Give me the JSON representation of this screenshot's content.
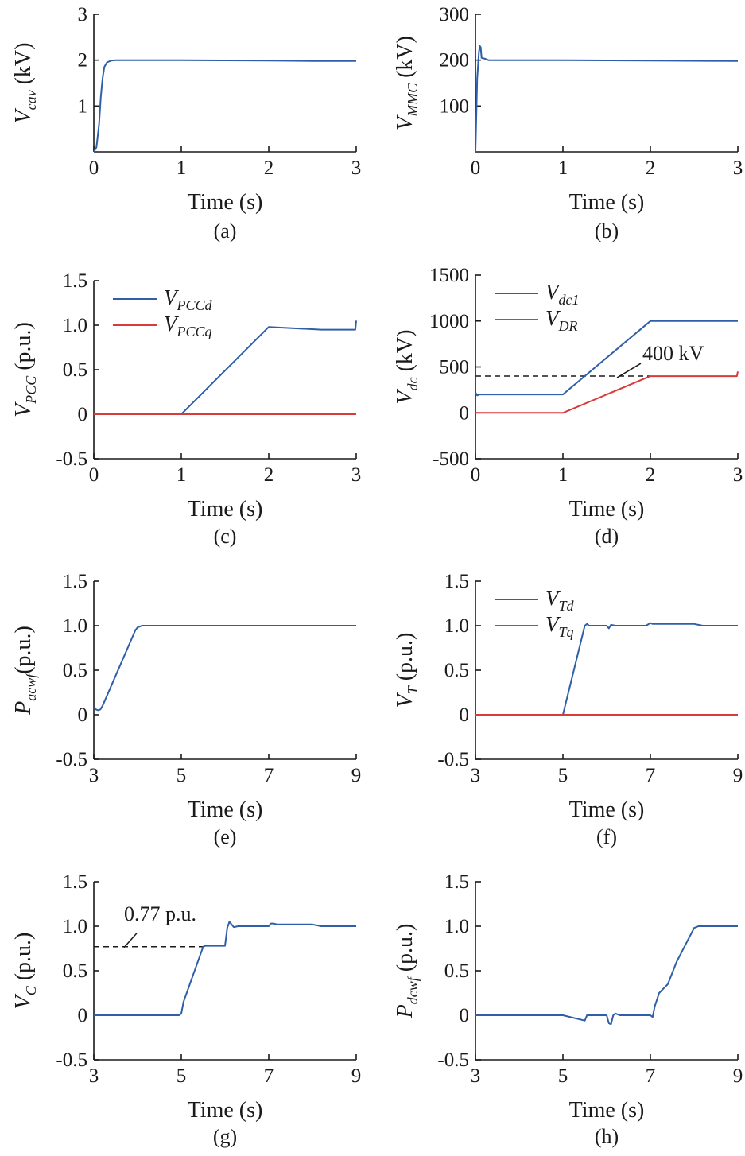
{
  "chart_data": [
    {
      "panel": "(a)",
      "type": "line",
      "xlabel": "Time (s)",
      "ylabel": {
        "main": "V",
        "sub": "cav",
        "unit": " (kV)"
      },
      "xlim": [
        0,
        3
      ],
      "ylim": [
        0,
        3
      ],
      "xticks": [
        0,
        1,
        2,
        3
      ],
      "yticks": [
        1,
        2,
        3
      ],
      "xticklabels": [
        "0",
        "1",
        "2",
        "3"
      ],
      "yticklabels": [
        "1",
        "2",
        "3"
      ],
      "series": [
        {
          "color": "#2e5fa8",
          "x": [
            0,
            0.03,
            0.06,
            0.08,
            0.1,
            0.12,
            0.15,
            0.2,
            0.25,
            0.3,
            1.0,
            2.0,
            2.5,
            3.0
          ],
          "y": [
            0,
            0.1,
            0.6,
            1.2,
            1.6,
            1.85,
            1.95,
            1.99,
            2.0,
            2.0,
            2.0,
            1.99,
            1.98,
            1.98
          ]
        }
      ]
    },
    {
      "panel": "(b)",
      "type": "line",
      "xlabel": "Time (s)",
      "ylabel": {
        "main": "V",
        "sub": "MMC",
        "unit": " (kV)"
      },
      "xlim": [
        0,
        3
      ],
      "ylim": [
        0,
        300
      ],
      "xticks": [
        0,
        1,
        2,
        3
      ],
      "yticks": [
        100,
        200,
        300
      ],
      "xticklabels": [
        "0",
        "1",
        "2",
        "3"
      ],
      "yticklabels": [
        "100",
        "200",
        "300"
      ],
      "series": [
        {
          "color": "#2e5fa8",
          "x": [
            0,
            0.02,
            0.04,
            0.05,
            0.06,
            0.07,
            0.09,
            0.11,
            0.15,
            0.2,
            1.0,
            2.0,
            3.0
          ],
          "y": [
            0,
            160,
            218,
            231,
            228,
            205,
            204,
            203,
            200,
            200,
            200,
            199,
            198
          ]
        }
      ]
    },
    {
      "panel": "(c)",
      "type": "line",
      "xlabel": "Time (s)",
      "ylabel": {
        "main": "V",
        "sub": "PCC",
        "unit": " (p.u.)"
      },
      "xlim": [
        0,
        3
      ],
      "ylim": [
        -0.5,
        1.5
      ],
      "xticks": [
        0,
        1,
        2,
        3
      ],
      "yticks": [
        -0.5,
        0,
        0.5,
        1.0,
        1.5
      ],
      "xticklabels": [
        "0",
        "1",
        "2",
        "3"
      ],
      "yticklabels": [
        "-0.5",
        "0",
        "0.5",
        "1.0",
        "1.5"
      ],
      "legend": [
        {
          "main": "V",
          "sub": "PCCd",
          "color": "#2e5fa8"
        },
        {
          "main": "V",
          "sub": "PCCq",
          "color": "#d93a3a"
        }
      ],
      "series": [
        {
          "color": "#2e5fa8",
          "x": [
            0,
            0.02,
            0.05,
            1.0,
            2.0,
            2.6,
            2.99,
            3.0
          ],
          "y": [
            0,
            0.01,
            0,
            0,
            0.98,
            0.95,
            0.95,
            1.05
          ]
        },
        {
          "color": "#d93a3a",
          "x": [
            0,
            3.0
          ],
          "y": [
            0,
            0
          ]
        }
      ]
    },
    {
      "panel": "(d)",
      "type": "line",
      "xlabel": "Time (s)",
      "ylabel": {
        "main": "V",
        "sub": "dc",
        "unit": " (kV)"
      },
      "xlim": [
        0,
        3
      ],
      "ylim": [
        -500,
        1500
      ],
      "xticks": [
        0,
        1,
        2,
        3
      ],
      "yticks": [
        -500,
        0,
        500,
        1000,
        1500
      ],
      "xticklabels": [
        "0",
        "1",
        "2",
        "3"
      ],
      "yticklabels": [
        "-500",
        "0",
        "500",
        "1000",
        "1500"
      ],
      "legend": [
        {
          "main": "V",
          "sub": "dc1",
          "color": "#2e5fa8"
        },
        {
          "main": "V",
          "sub": "DR",
          "color": "#d93a3a"
        }
      ],
      "annotation": {
        "text": "400 kV",
        "value": 400
      },
      "series": [
        {
          "color": "#2e5fa8",
          "x": [
            0,
            0.02,
            0.05,
            0.1,
            1.0,
            2.0,
            3.0
          ],
          "y": [
            220,
            190,
            200,
            200,
            200,
            1000,
            1000
          ]
        },
        {
          "color": "#d93a3a",
          "x": [
            0,
            1.0,
            2.0,
            2.99,
            3.0
          ],
          "y": [
            0,
            0,
            400,
            400,
            450
          ]
        }
      ]
    },
    {
      "panel": "(e)",
      "type": "line",
      "xlabel": "Time (s)",
      "ylabel": {
        "main": "P",
        "sub": "acwf",
        "unit": "(p.u.)"
      },
      "xlim": [
        3,
        9
      ],
      "ylim": [
        -0.5,
        1.5
      ],
      "xticks": [
        3,
        5,
        7,
        9
      ],
      "yticks": [
        -0.5,
        0,
        0.5,
        1.0,
        1.5
      ],
      "xticklabels": [
        "3",
        "5",
        "7",
        "9"
      ],
      "yticklabels": [
        "-0.5",
        "0",
        "0.5",
        "1.0",
        "1.5"
      ],
      "series": [
        {
          "color": "#2e5fa8",
          "x": [
            3.0,
            3.05,
            3.1,
            3.15,
            3.2,
            3.95,
            4.0,
            4.1,
            4.2,
            9.0
          ],
          "y": [
            0.08,
            0.06,
            0.05,
            0.06,
            0.1,
            0.95,
            0.98,
            1.0,
            1.0,
            1.0
          ]
        }
      ]
    },
    {
      "panel": "(f)",
      "type": "line",
      "xlabel": "Time (s)",
      "ylabel": {
        "main": "V",
        "sub": "T",
        "unit": " (p.u.)"
      },
      "xlim": [
        3,
        9
      ],
      "ylim": [
        -0.5,
        1.5
      ],
      "xticks": [
        3,
        5,
        7,
        9
      ],
      "yticks": [
        -0.5,
        0,
        0.5,
        1.0,
        1.5
      ],
      "xticklabels": [
        "3",
        "5",
        "7",
        "9"
      ],
      "yticklabels": [
        "-0.5",
        "0",
        "0.5",
        "1.0",
        "1.5"
      ],
      "legend": [
        {
          "main": "V",
          "sub": "Td",
          "color": "#2e5fa8"
        },
        {
          "main": "V",
          "sub": "Tq",
          "color": "#d93a3a"
        }
      ],
      "series": [
        {
          "color": "#2e5fa8",
          "x": [
            3.0,
            5.0,
            5.5,
            5.55,
            5.6,
            6.0,
            6.05,
            6.1,
            6.2,
            6.5,
            6.9,
            7.0,
            7.05,
            7.1,
            7.2,
            7.5,
            8.0,
            8.2,
            9.0
          ],
          "y": [
            0,
            0,
            1.0,
            1.02,
            1.0,
            1.0,
            0.97,
            1.01,
            1.0,
            1.0,
            1.0,
            1.03,
            1.02,
            1.02,
            1.02,
            1.02,
            1.02,
            1.0,
            1.0
          ]
        },
        {
          "color": "#d93a3a",
          "x": [
            3.0,
            9.0
          ],
          "y": [
            0,
            0
          ]
        }
      ]
    },
    {
      "panel": "(g)",
      "type": "line",
      "xlabel": "Time (s)",
      "ylabel": {
        "main": "V",
        "sub": "C",
        "unit": " (p.u.)"
      },
      "xlim": [
        3,
        9
      ],
      "ylim": [
        -0.5,
        1.5
      ],
      "xticks": [
        3,
        5,
        7,
        9
      ],
      "yticks": [
        -0.5,
        0,
        0.5,
        1.0,
        1.5
      ],
      "xticklabels": [
        "3",
        "5",
        "7",
        "9"
      ],
      "yticklabels": [
        "-0.5",
        "0",
        "0.5",
        "1.0",
        "1.5"
      ],
      "annotation": {
        "text": "0.77 p.u.",
        "value": 0.77
      },
      "series": [
        {
          "color": "#2e5fa8",
          "x": [
            3.0,
            4.95,
            5.0,
            5.05,
            5.5,
            5.55,
            6.0,
            6.05,
            6.1,
            6.15,
            6.2,
            6.3,
            7.0,
            7.05,
            7.1,
            7.2,
            7.5,
            8.0,
            8.2,
            9.0
          ],
          "y": [
            0,
            0,
            0.02,
            0.15,
            0.77,
            0.78,
            0.78,
            0.98,
            1.05,
            1.02,
            0.99,
            1.0,
            1.0,
            1.03,
            1.03,
            1.02,
            1.02,
            1.02,
            1.0,
            1.0
          ]
        }
      ]
    },
    {
      "panel": "(h)",
      "type": "line",
      "xlabel": "Time (s)",
      "ylabel": {
        "main": "P",
        "sub": "dcwf",
        "unit": " (p.u.)"
      },
      "xlim": [
        3,
        9
      ],
      "ylim": [
        -0.5,
        1.5
      ],
      "xticks": [
        3,
        5,
        7,
        9
      ],
      "yticks": [
        -0.5,
        0,
        0.5,
        1.0,
        1.5
      ],
      "xticklabels": [
        "3",
        "5",
        "7",
        "9"
      ],
      "yticklabels": [
        "-0.5",
        "0",
        "0.5",
        "1.0",
        "1.5"
      ],
      "series": [
        {
          "color": "#2e5fa8",
          "x": [
            3.0,
            5.0,
            5.5,
            5.55,
            5.6,
            6.0,
            6.05,
            6.1,
            6.15,
            6.2,
            6.3,
            7.0,
            7.05,
            7.1,
            7.2,
            7.4,
            7.6,
            8.0,
            8.1,
            8.2,
            9.0
          ],
          "y": [
            0,
            0,
            -0.06,
            0.0,
            0.0,
            0.0,
            -0.09,
            -0.1,
            0.0,
            0.02,
            0.0,
            0.0,
            -0.02,
            0.1,
            0.25,
            0.35,
            0.6,
            0.98,
            1.0,
            1.0,
            1.0
          ]
        }
      ]
    }
  ]
}
